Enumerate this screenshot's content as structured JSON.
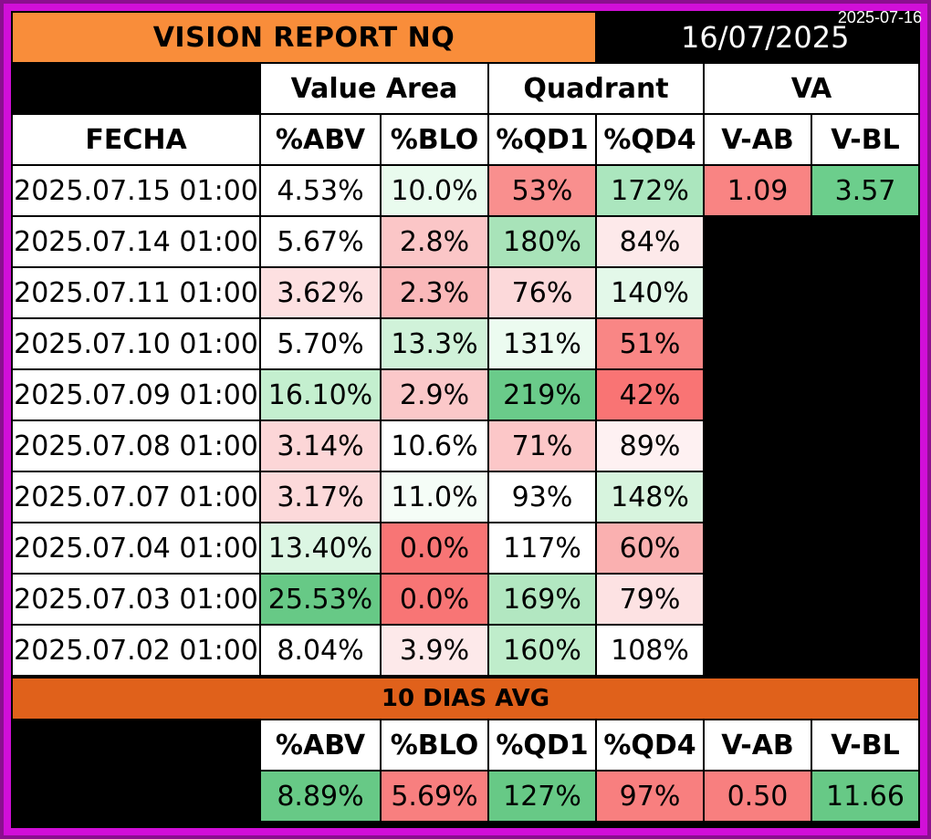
{
  "timestamp_label": "2025-07-16",
  "report_title": "VISION REPORT NQ",
  "report_date": "16/07/2025",
  "group_headers": {
    "value_area": "Value Area",
    "quadrant": "Quadrant",
    "va": "VA"
  },
  "columns": [
    "FECHA",
    "%ABV",
    "%BLO",
    "%QD1",
    "%QD4",
    "V-AB",
    "V-BL"
  ],
  "rows": [
    {
      "fecha": "2025.07.15 01:00",
      "abv": "4.53%",
      "blo": "10.0%",
      "qd1": "53%",
      "qd4": "172%",
      "vab": "1.09",
      "vbl": "3.57",
      "colors": {
        "abv": "#ffffff",
        "blo": "#e9fbee",
        "qd1": "#f98f8e",
        "qd4": "#abe6be",
        "vab": "#f98483",
        "vbl": "#6cce8c"
      }
    },
    {
      "fecha": "2025.07.14 01:00",
      "abv": "5.67%",
      "blo": "2.8%",
      "qd1": "180%",
      "qd4": "84%",
      "colors": {
        "abv": "#ffffff",
        "blo": "#fbc6c7",
        "qd1": "#a8e3b9",
        "qd4": "#fde9ea"
      }
    },
    {
      "fecha": "2025.07.11 01:00",
      "abv": "3.62%",
      "blo": "2.3%",
      "qd1": "76%",
      "qd4": "140%",
      "colors": {
        "abv": "#fde0e1",
        "blo": "#fab8b9",
        "qd1": "#fcd9da",
        "qd4": "#e3f8e9"
      }
    },
    {
      "fecha": "2025.07.10 01:00",
      "abv": "5.70%",
      "blo": "13.3%",
      "qd1": "131%",
      "qd4": "51%",
      "colors": {
        "abv": "#ffffff",
        "blo": "#d0f2d9",
        "qd1": "#ecfbf0",
        "qd4": "#f98685"
      }
    },
    {
      "fecha": "2025.07.09 01:00",
      "abv": "16.10%",
      "blo": "2.9%",
      "qd1": "219%",
      "qd4": "42%",
      "colors": {
        "abv": "#c4efcf",
        "blo": "#fbc8c9",
        "qd1": "#6acb8a",
        "qd4": "#f97474"
      }
    },
    {
      "fecha": "2025.07.08 01:00",
      "abv": "3.14%",
      "blo": "10.6%",
      "qd1": "71%",
      "qd4": "89%",
      "colors": {
        "abv": "#fcd6d7",
        "blo": "#ffffff",
        "qd1": "#fcc7c8",
        "qd4": "#fef1f2"
      }
    },
    {
      "fecha": "2025.07.07 01:00",
      "abv": "3.17%",
      "blo": "11.0%",
      "qd1": "93%",
      "qd4": "148%",
      "colors": {
        "abv": "#fcd9da",
        "blo": "#f5fdf7",
        "qd1": "#ffffff",
        "qd4": "#d7f4de"
      }
    },
    {
      "fecha": "2025.07.04 01:00",
      "abv": "13.40%",
      "blo": "0.0%",
      "qd1": "117%",
      "qd4": "60%",
      "colors": {
        "abv": "#dcf6e3",
        "blo": "#f87575",
        "qd1": "#ffffff",
        "qd4": "#fab0b0"
      }
    },
    {
      "fecha": "2025.07.03 01:00",
      "abv": "25.53%",
      "blo": "0.0%",
      "qd1": "169%",
      "qd4": "79%",
      "colors": {
        "abv": "#67c986",
        "blo": "#f87575",
        "qd1": "#b2e7c1",
        "qd4": "#fde2e3"
      }
    },
    {
      "fecha": "2025.07.02 01:00",
      "abv": "8.04%",
      "blo": "3.9%",
      "qd1": "160%",
      "qd4": "108%",
      "colors": {
        "abv": "#ffffff",
        "blo": "#fde9ea",
        "qd1": "#bfedcb",
        "qd4": "#ffffff"
      }
    }
  ],
  "avg_band_label": "10 DIAS AVG",
  "avg_columns": [
    "%ABV",
    "%BLO",
    "%QD1",
    "%QD4",
    "V-AB",
    "V-BL"
  ],
  "avg_values": [
    "8.89%",
    "5.69%",
    "127%",
    "97%",
    "0.50",
    "11.66"
  ],
  "avg_colors": [
    "#67c986",
    "#f87f7f",
    "#67c986",
    "#f87f7f",
    "#f87f7f",
    "#67c986"
  ],
  "colors": {
    "title_bg": "#f98d3a",
    "band_bg": "#e0611b",
    "frame": "#d10fd8",
    "outer": "#8b0f8f"
  }
}
